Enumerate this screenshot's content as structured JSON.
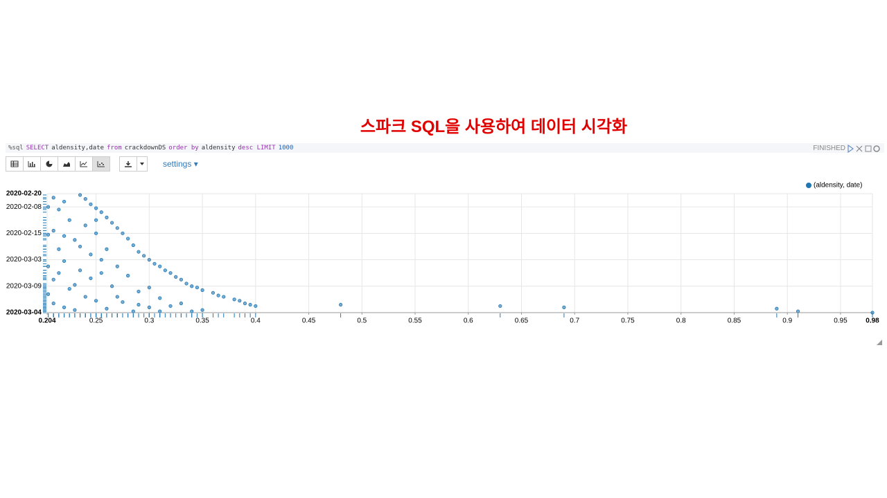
{
  "page_title": "스파크 SQL을 사용하여 데이터 시각화",
  "paragraph": {
    "query": [
      {
        "text": "%sql",
        "color": "#555555"
      },
      {
        "text": "SELECT",
        "color": "#9b30b0"
      },
      {
        "text": "aldensity,date",
        "color": "#333333"
      },
      {
        "text": "from",
        "color": "#9b30b0"
      },
      {
        "text": "crackdownDS",
        "color": "#333333"
      },
      {
        "text": "order by",
        "color": "#9b30b0"
      },
      {
        "text": "aldensity",
        "color": "#333333"
      },
      {
        "text": "desc LIMIT",
        "color": "#9b30b0"
      },
      {
        "text": "1000",
        "color": "#1a5fb4"
      }
    ],
    "status": "FINISHED",
    "settings": "settings"
  },
  "chart_data": {
    "type": "scatter",
    "xlim": [
      0.204,
      0.98
    ],
    "xticks": [
      0.204,
      0.25,
      0.3,
      0.35,
      0.4,
      0.45,
      0.5,
      0.55,
      0.6,
      0.65,
      0.7,
      0.75,
      0.8,
      0.85,
      0.9,
      0.95,
      0.98
    ],
    "ylim": [
      0,
      9
    ],
    "yticks": [
      {
        "value": 0,
        "label": "2020-02-20"
      },
      {
        "value": 1,
        "label": "2020-02-08"
      },
      {
        "value": 3,
        "label": "2020-02-15"
      },
      {
        "value": 5,
        "label": "2020-03-03"
      },
      {
        "value": 7,
        "label": "2020-03-09"
      },
      {
        "value": 9,
        "label": "2020-03-04"
      }
    ],
    "grid": true,
    "legend": "top-right",
    "series": [
      {
        "name": "(aldensity, date)",
        "color": "#1f77b4",
        "x": [
          0.235,
          0.24,
          0.245,
          0.25,
          0.255,
          0.26,
          0.265,
          0.27,
          0.275,
          0.28,
          0.285,
          0.29,
          0.295,
          0.3,
          0.305,
          0.31,
          0.315,
          0.32,
          0.325,
          0.33,
          0.335,
          0.34,
          0.345,
          0.35,
          0.36,
          0.365,
          0.37,
          0.38,
          0.385,
          0.39,
          0.395,
          0.4,
          0.21,
          0.215,
          0.22,
          0.225,
          0.21,
          0.23,
          0.215,
          0.24,
          0.22,
          0.235,
          0.21,
          0.245,
          0.25,
          0.225,
          0.24,
          0.21,
          0.23,
          0.255,
          0.26,
          0.265,
          0.27,
          0.28,
          0.275,
          0.29,
          0.3,
          0.31,
          0.26,
          0.285,
          0.32,
          0.33,
          0.34,
          0.25,
          0.22,
          0.205,
          0.205,
          0.205,
          0.205,
          0.215,
          0.23,
          0.245,
          0.255,
          0.235,
          0.22,
          0.25,
          0.3,
          0.27,
          0.35,
          0.31,
          0.29,
          0.48,
          0.63,
          0.69,
          0.89,
          0.91,
          0.98
        ],
        "y": [
          0.1,
          0.4,
          0.8,
          1.1,
          1.4,
          1.8,
          2.2,
          2.6,
          3.0,
          3.4,
          3.9,
          4.4,
          4.7,
          5.0,
          5.3,
          5.5,
          5.8,
          6.0,
          6.3,
          6.5,
          6.8,
          7.0,
          7.1,
          7.3,
          7.5,
          7.7,
          7.8,
          8.0,
          8.1,
          8.3,
          8.4,
          8.5,
          0.3,
          1.2,
          0.6,
          2.0,
          2.8,
          3.5,
          4.2,
          2.4,
          5.1,
          5.8,
          6.5,
          4.6,
          3.0,
          7.2,
          7.8,
          8.3,
          8.8,
          6.0,
          4.2,
          7.0,
          5.5,
          6.2,
          8.2,
          7.4,
          8.6,
          7.9,
          8.7,
          8.9,
          8.5,
          8.3,
          8.9,
          8.1,
          8.6,
          7.6,
          5.5,
          3.1,
          1.0,
          6.0,
          6.9,
          6.4,
          5.0,
          4.0,
          3.2,
          2.0,
          7.1,
          7.8,
          8.8,
          8.9,
          8.4,
          8.4,
          8.5,
          8.6,
          8.7,
          8.9,
          9
        ]
      }
    ]
  }
}
